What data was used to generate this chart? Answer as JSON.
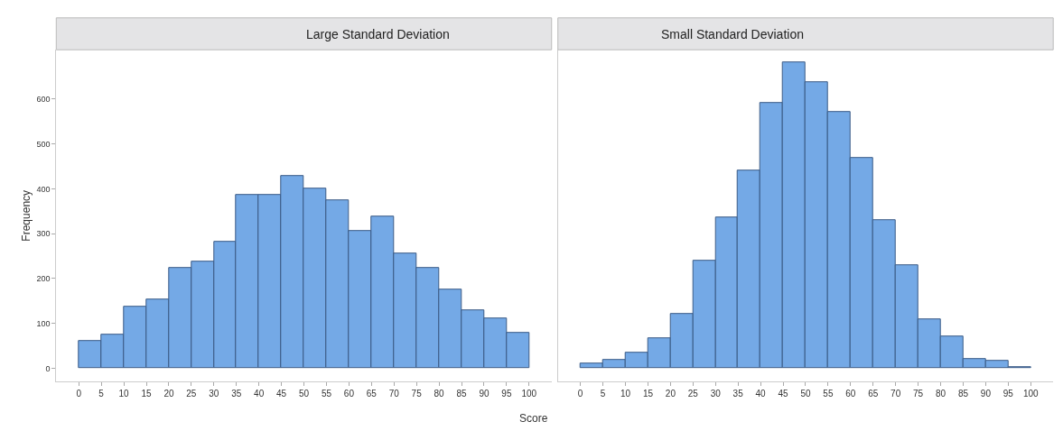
{
  "chart_data": [
    {
      "type": "histogram",
      "title": "Large Standard Deviation",
      "xlabel": "Score",
      "ylabel": "Frequency",
      "bins": [
        0,
        5,
        10,
        15,
        20,
        25,
        30,
        35,
        40,
        45,
        50,
        55,
        60,
        65,
        70,
        75,
        80,
        85,
        90,
        95,
        100
      ],
      "values": [
        61,
        74,
        138,
        154,
        223,
        237,
        282,
        386,
        387,
        429,
        401,
        374,
        307,
        338,
        256,
        223,
        176,
        129,
        111,
        79
      ],
      "color": "#74a9e6",
      "xlim": [
        -5,
        105
      ],
      "xticks": [
        0,
        5,
        10,
        15,
        20,
        25,
        30,
        35,
        40,
        45,
        50,
        55,
        60,
        65,
        70,
        75,
        80,
        85,
        90,
        95,
        100
      ],
      "ylim": [
        -30,
        710
      ],
      "yticks": [
        0,
        100,
        200,
        300,
        400,
        500,
        600
      ]
    },
    {
      "type": "histogram",
      "title": "Small Standard Deviation",
      "bins": [
        0,
        5,
        10,
        15,
        20,
        25,
        30,
        35,
        40,
        45,
        50,
        55,
        60,
        65,
        70,
        75,
        80,
        85,
        90,
        95,
        100
      ],
      "values": [
        11,
        18,
        35,
        67,
        121,
        239,
        336,
        441,
        592,
        681,
        638,
        572,
        469,
        330,
        230,
        109,
        71,
        20,
        17,
        3
      ],
      "color": "#74a9e6",
      "xlim": [
        -5,
        105
      ],
      "xticks": [
        0,
        5,
        10,
        15,
        20,
        25,
        30,
        35,
        40,
        45,
        50,
        55,
        60,
        65,
        70,
        75,
        80,
        85,
        90,
        95,
        100
      ],
      "ylim": [
        -30,
        710
      ],
      "yticks": [
        0,
        100,
        200,
        300,
        400,
        500,
        600
      ],
      "tick_labels": "x"
    }
  ]
}
